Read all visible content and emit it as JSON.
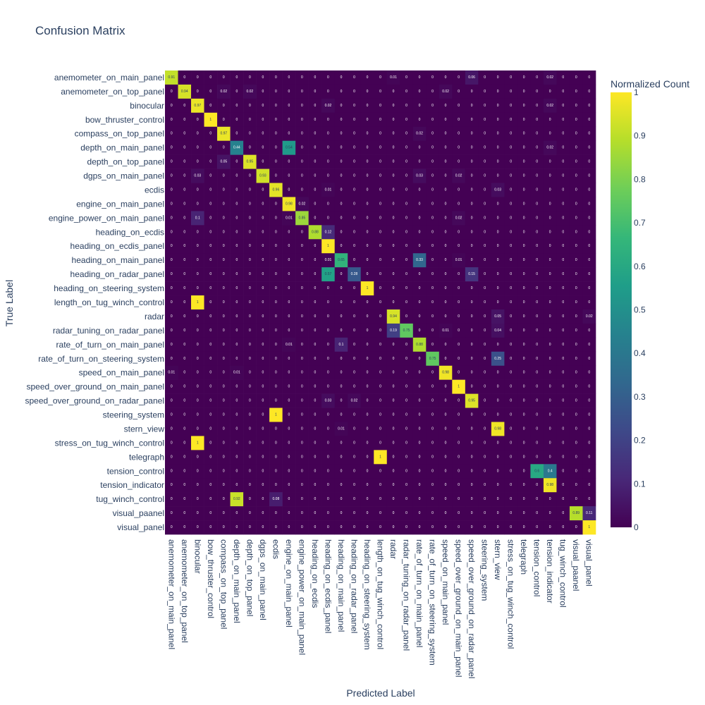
{
  "chart_data": {
    "type": "heatmap",
    "title": "Confusion Matrix",
    "xlabel": "Predicted Label",
    "ylabel": "True Label",
    "colorbar": {
      "title": "Normalized Count",
      "ticks": [
        "0",
        "0.1",
        "0.2",
        "0.3",
        "0.4",
        "0.5",
        "0.6",
        "0.7",
        "0.8",
        "0.9",
        "1"
      ],
      "range": [
        0,
        1
      ],
      "colorscale": "Viridis"
    },
    "labels": [
      "anemometer_on_main_panel",
      "anemometer_on_top_panel",
      "binocular",
      "bow_thruster_control",
      "compass_on_top_panel",
      "depth_on_main_panel",
      "depth_on_top_panel",
      "dgps_on_main_panel",
      "ecdis",
      "engine_on_main_panel",
      "engine_power_on_main_panel",
      "heading_on_ecdis",
      "heading_on_ecdis_panel",
      "heading_on_main_panel",
      "heading_on_radar_panel",
      "heading_on_steering_system",
      "length_on_tug_winch_control",
      "radar",
      "radar_tuning_on_radar_panel",
      "rate_of_turn_on_main_panel",
      "rate_of_turn_on_steering_system",
      "speed_on_main_panel",
      "speed_over_ground_on_main_panel",
      "speed_over_ground_on_radar_panel",
      "steering_system",
      "stern_view",
      "stress_on_tug_winch_control",
      "telegraph",
      "tension_control",
      "tension_indicator",
      "tug_winch_control",
      "visual_paanel",
      "visual_panel"
    ],
    "cells": [
      [
        0,
        0,
        0.91
      ],
      [
        0,
        17,
        0.01
      ],
      [
        0,
        23,
        0.06
      ],
      [
        0,
        29,
        0.02
      ],
      [
        1,
        1,
        0.94
      ],
      [
        1,
        4,
        0.02
      ],
      [
        1,
        6,
        0.02
      ],
      [
        1,
        21,
        0.02
      ],
      [
        2,
        2,
        0.97
      ],
      [
        2,
        12,
        0.02
      ],
      [
        2,
        29,
        0.02
      ],
      [
        3,
        3,
        1
      ],
      [
        4,
        4,
        0.97
      ],
      [
        4,
        19,
        0.02
      ],
      [
        5,
        5,
        0.44
      ],
      [
        5,
        9,
        0.54
      ],
      [
        5,
        29,
        0.02
      ],
      [
        6,
        4,
        0.05
      ],
      [
        6,
        6,
        0.95
      ],
      [
        7,
        2,
        0.03
      ],
      [
        7,
        7,
        0.93
      ],
      [
        7,
        19,
        0.03
      ],
      [
        7,
        22,
        0.02
      ],
      [
        8,
        8,
        0.96
      ],
      [
        8,
        12,
        0.01
      ],
      [
        8,
        25,
        0.03
      ],
      [
        9,
        9,
        0.98
      ],
      [
        9,
        10,
        0.02
      ],
      [
        10,
        2,
        0.1
      ],
      [
        10,
        9,
        0.01
      ],
      [
        10,
        10,
        0.85
      ],
      [
        10,
        22,
        0.02
      ],
      [
        11,
        11,
        0.88
      ],
      [
        11,
        12,
        0.12
      ],
      [
        12,
        12,
        1
      ],
      [
        13,
        12,
        0.01
      ],
      [
        13,
        13,
        0.65
      ],
      [
        13,
        19,
        0.33
      ],
      [
        13,
        22,
        0.01
      ],
      [
        14,
        12,
        0.57
      ],
      [
        14,
        14,
        0.28
      ],
      [
        14,
        23,
        0.15
      ],
      [
        15,
        15,
        1
      ],
      [
        16,
        2,
        1
      ],
      [
        17,
        17,
        0.94
      ],
      [
        17,
        25,
        0.05
      ],
      [
        17,
        32,
        0.02
      ],
      [
        18,
        17,
        0.19
      ],
      [
        18,
        18,
        0.75
      ],
      [
        18,
        21,
        0.01
      ],
      [
        18,
        25,
        0.04
      ],
      [
        19,
        9,
        0.01
      ],
      [
        19,
        13,
        0.1
      ],
      [
        19,
        19,
        0.88
      ],
      [
        20,
        20,
        0.75
      ],
      [
        20,
        25,
        0.25
      ],
      [
        21,
        0,
        0.01
      ],
      [
        21,
        5,
        0.01
      ],
      [
        21,
        21,
        0.98
      ],
      [
        22,
        22,
        1
      ],
      [
        23,
        12,
        0.03
      ],
      [
        23,
        14,
        0.02
      ],
      [
        23,
        23,
        0.95
      ],
      [
        24,
        8,
        1
      ],
      [
        25,
        13,
        0.01
      ],
      [
        25,
        25,
        0.98
      ],
      [
        26,
        2,
        1
      ],
      [
        27,
        16,
        1
      ],
      [
        28,
        28,
        0.6
      ],
      [
        28,
        29,
        0.4
      ],
      [
        29,
        29,
        0.98
      ],
      [
        30,
        5,
        0.92
      ],
      [
        30,
        8,
        0.08
      ],
      [
        31,
        31,
        0.89
      ],
      [
        31,
        32,
        0.11
      ],
      [
        32,
        32,
        1
      ]
    ],
    "zero_text": "0"
  }
}
